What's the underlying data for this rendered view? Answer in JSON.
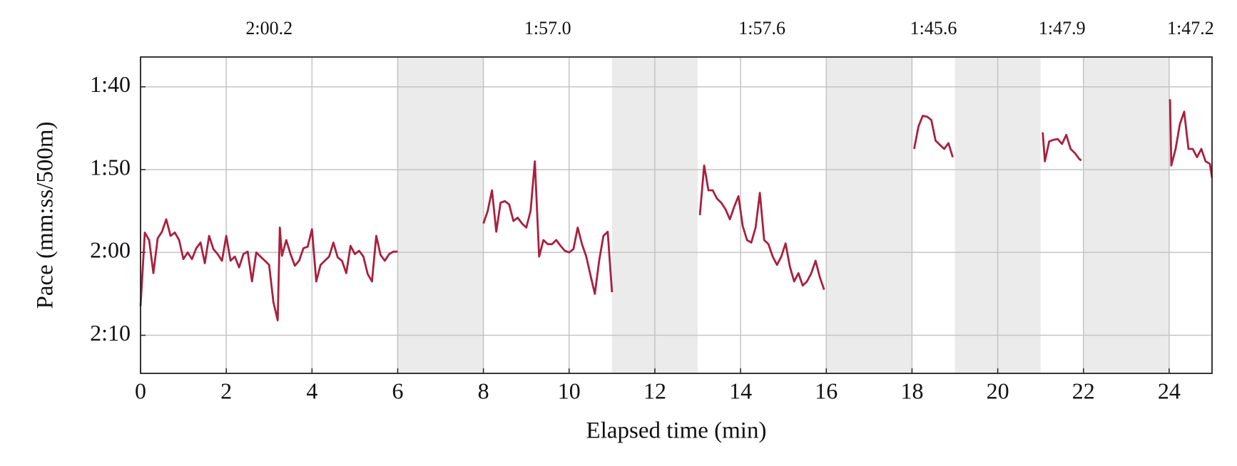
{
  "chart_data": {
    "type": "line",
    "x_label": "Elapsed time (min)",
    "y_label": "Pace (mm:ss/500m)",
    "color": "#a8203f",
    "shade_color": "#ebebeb",
    "grid": true,
    "xlim": [
      0,
      25
    ],
    "xticks": [
      0,
      2,
      4,
      6,
      8,
      10,
      12,
      14,
      16,
      18,
      20,
      22,
      24
    ],
    "ylim": [
      134.6,
      96.4
    ],
    "yticks": [
      {
        "value": 100,
        "label": "1:40"
      },
      {
        "value": 110,
        "label": "1:50"
      },
      {
        "value": 120,
        "label": "2:00"
      },
      {
        "value": 130,
        "label": "2:10"
      }
    ],
    "shaded_intervals": [
      [
        6,
        8
      ],
      [
        11,
        13
      ],
      [
        16,
        18
      ],
      [
        19,
        21
      ],
      [
        22,
        24
      ]
    ],
    "annotations": [
      {
        "x": 3,
        "text": "2:00.2"
      },
      {
        "x": 9.5,
        "text": "1:57.0"
      },
      {
        "x": 14.5,
        "text": "1:57.6"
      },
      {
        "x": 18.5,
        "text": "1:45.6"
      },
      {
        "x": 21.5,
        "text": "1:47.9"
      },
      {
        "x": 24.5,
        "text": "1:47.2"
      }
    ],
    "x": [
      0,
      0.1,
      0.2,
      0.3,
      0.4,
      0.5,
      0.6,
      0.7,
      0.8,
      0.9,
      1.0,
      1.1,
      1.2,
      1.3,
      1.4,
      1.5,
      1.6,
      1.7,
      1.8,
      1.9,
      2.0,
      2.1,
      2.2,
      2.3,
      2.4,
      2.5,
      2.6,
      2.7,
      2.8,
      2.9,
      3.0,
      3.1,
      3.2,
      3.25,
      3.3,
      3.4,
      3.5,
      3.6,
      3.7,
      3.8,
      3.9,
      4.0,
      4.1,
      4.2,
      4.3,
      4.4,
      4.5,
      4.6,
      4.7,
      4.8,
      4.9,
      5.0,
      5.1,
      5.2,
      5.3,
      5.4,
      5.5,
      5.6,
      5.7,
      5.8,
      5.9,
      6.0,
      7,
      8.0,
      8.1,
      8.2,
      8.3,
      8.4,
      8.5,
      8.6,
      8.7,
      8.8,
      8.9,
      9.0,
      9.1,
      9.2,
      9.3,
      9.4,
      9.5,
      9.6,
      9.7,
      9.8,
      9.9,
      10.0,
      10.1,
      10.2,
      10.3,
      10.4,
      10.5,
      10.6,
      10.7,
      10.8,
      10.9,
      11.0,
      12,
      13.05,
      13.15,
      13.25,
      13.35,
      13.45,
      13.55,
      13.65,
      13.75,
      13.85,
      13.95,
      14.05,
      14.15,
      14.25,
      14.35,
      14.45,
      14.55,
      14.65,
      14.75,
      14.85,
      14.95,
      15.05,
      15.15,
      15.25,
      15.35,
      15.45,
      15.55,
      15.65,
      15.75,
      15.85,
      15.95,
      17,
      18.05,
      18.15,
      18.25,
      18.35,
      18.45,
      18.55,
      18.65,
      18.75,
      18.85,
      18.95,
      20,
      21.05,
      21.1,
      21.2,
      21.3,
      21.4,
      21.5,
      21.6,
      21.7,
      21.8,
      21.9,
      21.95,
      23,
      24.02,
      24.05,
      24.15,
      24.25,
      24.35,
      24.45,
      24.55,
      24.65,
      24.75,
      24.85,
      24.95,
      25.0
    ],
    "values": [
      126.5,
      117.6,
      118.5,
      122.5,
      118.3,
      117.5,
      116.0,
      118.0,
      117.6,
      118.5,
      120.8,
      120.0,
      120.8,
      119.5,
      118.8,
      121.3,
      118.0,
      119.6,
      120.2,
      121.0,
      118.0,
      121.0,
      120.5,
      121.8,
      120.2,
      119.9,
      123.5,
      120.0,
      120.5,
      121.0,
      121.5,
      126.0,
      128.2,
      117.0,
      120.4,
      118.5,
      120.2,
      121.6,
      121.0,
      119.5,
      119.3,
      117.2,
      123.5,
      121.5,
      121.0,
      120.5,
      118.8,
      120.6,
      121.0,
      122.5,
      119.2,
      120.2,
      119.8,
      120.5,
      122.6,
      123.5,
      118.0,
      120.3,
      121.0,
      120.2,
      119.9,
      119.9,
      null,
      116.5,
      115.0,
      112.5,
      117.5,
      114.0,
      113.8,
      114.2,
      116.2,
      115.8,
      116.5,
      117.0,
      115.0,
      109.0,
      120.5,
      118.5,
      119.0,
      119.0,
      118.5,
      119.2,
      119.8,
      120.0,
      119.6,
      117.0,
      119.0,
      120.5,
      122.8,
      125.0,
      121.0,
      118.0,
      117.5,
      124.8,
      null,
      115.5,
      109.5,
      112.5,
      112.5,
      113.5,
      114.0,
      114.8,
      116.0,
      114.5,
      113.2,
      116.8,
      118.5,
      118.8,
      117.0,
      112.8,
      118.5,
      119.0,
      120.5,
      121.5,
      120.5,
      118.9,
      121.7,
      123.5,
      122.5,
      124.0,
      123.5,
      122.5,
      121.0,
      123.0,
      124.5,
      null,
      107.5,
      104.8,
      103.5,
      103.6,
      104.0,
      106.5,
      107.0,
      107.5,
      106.8,
      108.5,
      null,
      105.5,
      109.0,
      106.6,
      106.4,
      106.3,
      106.9,
      105.8,
      107.5,
      108.0,
      108.7,
      108.9,
      null,
      101.5,
      109.5,
      107.5,
      104.5,
      103.0,
      107.5,
      107.5,
      108.5,
      107.5,
      109.0,
      109.3,
      111.0
    ]
  }
}
